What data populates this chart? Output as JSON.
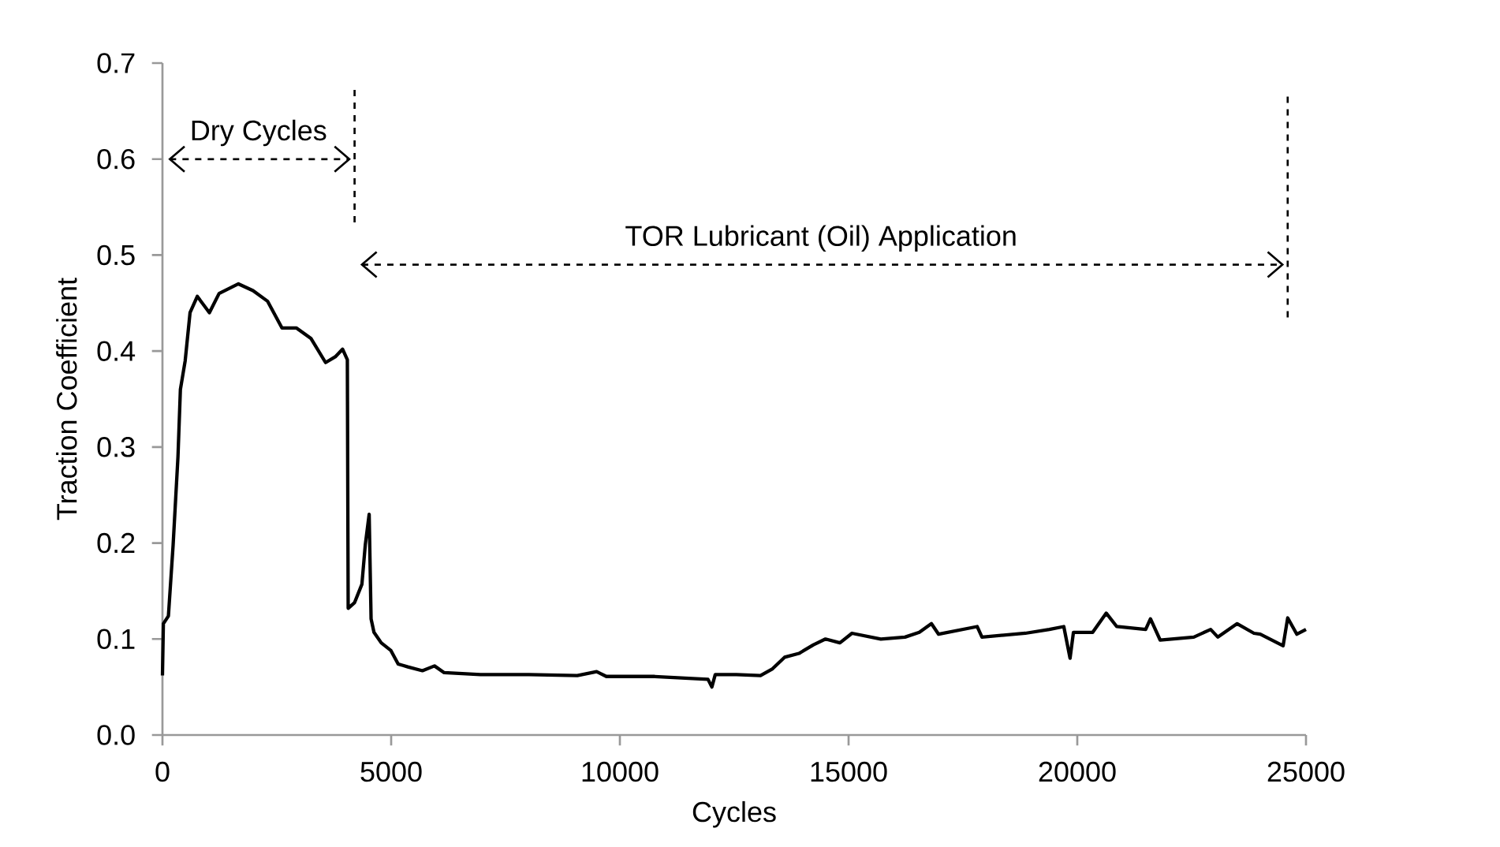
{
  "chart_data": {
    "type": "line",
    "xlabel": "Cycles",
    "ylabel": "Traction Coefficient",
    "xlim": [
      0,
      25000
    ],
    "ylim": [
      0,
      0.7
    ],
    "xticks": [
      0,
      5000,
      10000,
      15000,
      20000,
      25000
    ],
    "yticks": [
      {
        "value": 0,
        "label": "0.0"
      },
      {
        "value": 0.1,
        "label": "0.1"
      },
      {
        "value": 0.2,
        "label": "0.2"
      },
      {
        "value": 0.3,
        "label": "0.3"
      },
      {
        "value": 0.4,
        "label": "0.4"
      },
      {
        "value": 0.5,
        "label": "0.5"
      },
      {
        "value": 0.6,
        "label": "0.6"
      },
      {
        "value": 0.7,
        "label": "0.7"
      }
    ],
    "grid": false,
    "marker": "none",
    "line_style": "solid",
    "series": [
      {
        "color": "#000000",
        "x": [
          0,
          20,
          130,
          233,
          339,
          392,
          497,
          603,
          761,
          1026,
          1238,
          1661,
          1979,
          2296,
          2614,
          2931,
          3249,
          3566,
          3778,
          3937,
          4042,
          4060,
          4200,
          4360,
          4434,
          4519,
          4561,
          4624,
          4783,
          4995,
          5153,
          5365,
          5683,
          5947,
          6159,
          6952,
          8010,
          9069,
          9492,
          9704,
          10762,
          11926,
          12011,
          12085,
          12547,
          13074,
          13337,
          13600,
          13916,
          14232,
          14495,
          14811,
          15074,
          15705,
          16232,
          16547,
          16811,
          16968,
          17811,
          17916,
          18863,
          19389,
          19705,
          19842,
          19916,
          20337,
          20632,
          20863,
          21495,
          21600,
          21811,
          22547,
          22916,
          23074,
          23495,
          23863,
          24000,
          24500,
          24600,
          24800,
          25000
        ],
        "values": [
          0.062,
          0.116,
          0.124,
          0.198,
          0.29,
          0.36,
          0.39,
          0.44,
          0.457,
          0.44,
          0.46,
          0.47,
          0.463,
          0.452,
          0.424,
          0.424,
          0.413,
          0.388,
          0.394,
          0.402,
          0.391,
          0.132,
          0.138,
          0.157,
          0.198,
          0.23,
          0.121,
          0.107,
          0.096,
          0.088,
          0.074,
          0.071,
          0.067,
          0.072,
          0.065,
          0.063,
          0.063,
          0.062,
          0.066,
          0.061,
          0.061,
          0.058,
          0.05,
          0.063,
          0.063,
          0.062,
          0.069,
          0.081,
          0.085,
          0.094,
          0.1,
          0.096,
          0.106,
          0.1,
          0.102,
          0.107,
          0.116,
          0.105,
          0.113,
          0.102,
          0.106,
          0.11,
          0.113,
          0.08,
          0.107,
          0.107,
          0.127,
          0.113,
          0.11,
          0.121,
          0.099,
          0.102,
          0.11,
          0.102,
          0.116,
          0.106,
          0.105,
          0.093,
          0.122,
          0.105,
          0.11
        ]
      }
    ],
    "ref_lines": [
      {
        "axis": "x",
        "value": 4200,
        "color": "#000000",
        "line_style": "dashed"
      },
      {
        "axis": "x",
        "value": 24600,
        "color": "#000000",
        "line_style": "dashed"
      }
    ],
    "annotations": [
      "Dry Cycles",
      "TOR Lubricant (Oil) Application"
    ]
  }
}
